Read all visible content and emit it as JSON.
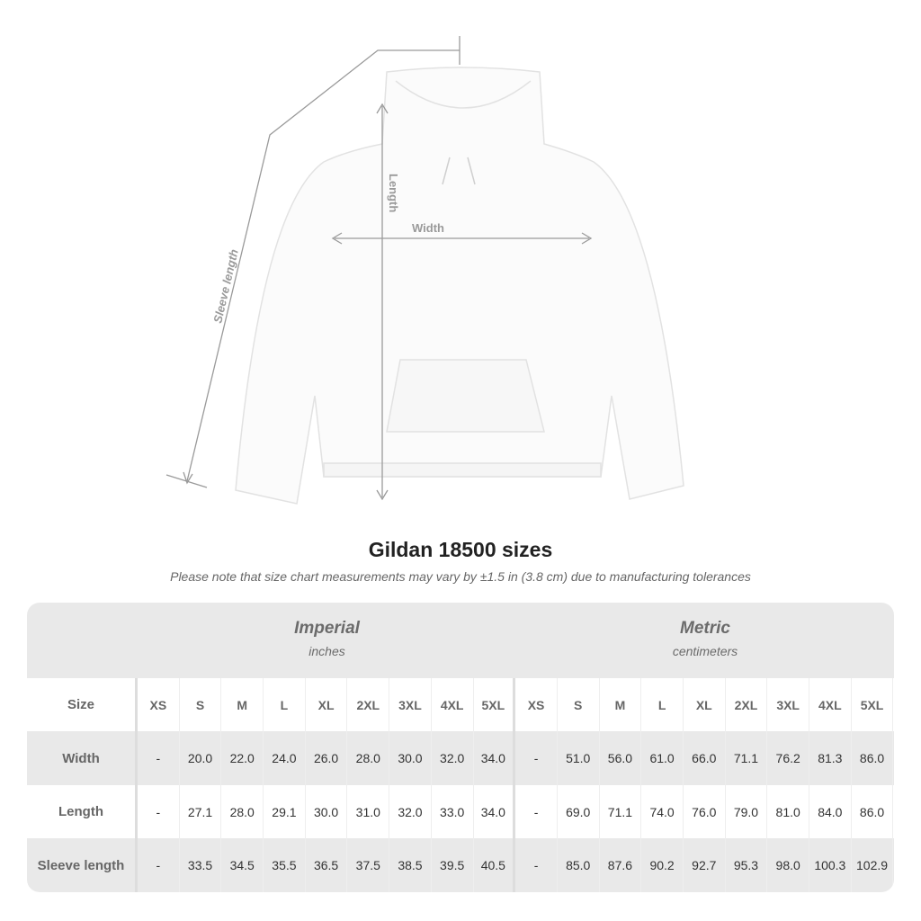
{
  "figure": {
    "labels": {
      "sleeve": "Sleeve length",
      "length": "Length",
      "width": "Width"
    }
  },
  "title": "Gildan 18500 sizes",
  "note": "Please note that size chart measurements may vary by ±1.5 in (3.8 cm) due to manufacturing tolerances",
  "table": {
    "imperial": {
      "name": "Imperial",
      "unit": "inches"
    },
    "metric": {
      "name": "Metric",
      "unit": "centimeters"
    },
    "rows": [
      {
        "label": "Size",
        "imperial": [
          "XS",
          "S",
          "M",
          "L",
          "XL",
          "2XL",
          "3XL",
          "4XL",
          "5XL"
        ],
        "metric": [
          "XS",
          "S",
          "M",
          "L",
          "XL",
          "2XL",
          "3XL",
          "4XL",
          "5XL"
        ]
      },
      {
        "label": "Width",
        "imperial": [
          "-",
          "20.0",
          "22.0",
          "24.0",
          "26.0",
          "28.0",
          "30.0",
          "32.0",
          "34.0"
        ],
        "metric": [
          "-",
          "51.0",
          "56.0",
          "61.0",
          "66.0",
          "71.1",
          "76.2",
          "81.3",
          "86.0"
        ]
      },
      {
        "label": "Length",
        "imperial": [
          "-",
          "27.1",
          "28.0",
          "29.1",
          "30.0",
          "31.0",
          "32.0",
          "33.0",
          "34.0"
        ],
        "metric": [
          "-",
          "69.0",
          "71.1",
          "74.0",
          "76.0",
          "79.0",
          "81.0",
          "84.0",
          "86.0"
        ]
      },
      {
        "label": "Sleeve length",
        "imperial": [
          "-",
          "33.5",
          "34.5",
          "35.5",
          "36.5",
          "37.5",
          "38.5",
          "39.5",
          "40.5"
        ],
        "metric": [
          "-",
          "85.0",
          "87.6",
          "90.2",
          "92.7",
          "95.3",
          "98.0",
          "100.3",
          "102.9"
        ]
      }
    ]
  },
  "colors": {
    "band": "#e9e9e9",
    "measure_line": "#9a9a9a",
    "hoodie": "#fbfbfb"
  }
}
